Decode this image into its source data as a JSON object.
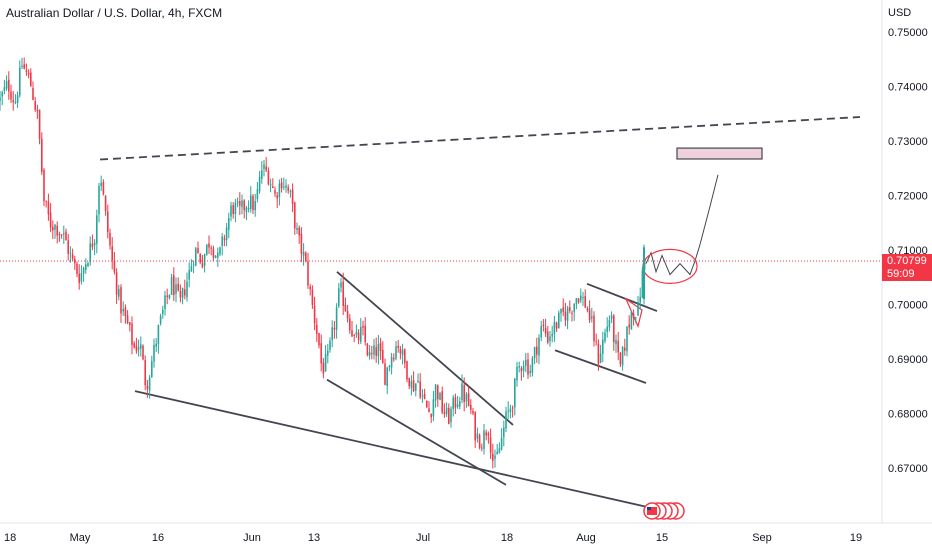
{
  "header": {
    "title": "Australian Dollar / U.S. Dollar, 4h, FXCM",
    "currency": "USD"
  },
  "price_tag": {
    "price": "0.70799",
    "countdown": "59:09"
  },
  "colors": {
    "up": "#26a69a",
    "down": "#f23645",
    "trendline": "#434651",
    "resistance_box": "#f0d0da"
  },
  "chart_data": {
    "type": "candlestick",
    "title": "Australian Dollar / U.S. Dollar, 4h, FXCM",
    "ylabel": "USD",
    "ylim": [
      0.6635,
      0.7535
    ],
    "y_ticks": [
      "0.75000",
      "0.74000",
      "0.73000",
      "0.72000",
      "0.71000",
      "0.70000",
      "0.69000",
      "0.68000",
      "0.67000"
    ],
    "x_ticks": [
      "18",
      "May",
      "16",
      "Jun",
      "13",
      "Jul",
      "18",
      "Aug",
      "15",
      "Sep",
      "19"
    ],
    "current_price": 0.70799,
    "grid": false,
    "series_path": [
      [
        0,
        0.7375
      ],
      [
        8,
        0.7405
      ],
      [
        15,
        0.737
      ],
      [
        22,
        0.744
      ],
      [
        30,
        0.741
      ],
      [
        38,
        0.734
      ],
      [
        44,
        0.719
      ],
      [
        50,
        0.715
      ],
      [
        58,
        0.714
      ],
      [
        65,
        0.712
      ],
      [
        72,
        0.708
      ],
      [
        80,
        0.705
      ],
      [
        88,
        0.709
      ],
      [
        95,
        0.713
      ],
      [
        100,
        0.725
      ],
      [
        105,
        0.717
      ],
      [
        112,
        0.708
      ],
      [
        120,
        0.7
      ],
      [
        128,
        0.696
      ],
      [
        134,
        0.692
      ],
      [
        140,
        0.693
      ],
      [
        146,
        0.685
      ],
      [
        150,
        0.688
      ],
      [
        158,
        0.695
      ],
      [
        165,
        0.7
      ],
      [
        172,
        0.704
      ],
      [
        180,
        0.7
      ],
      [
        188,
        0.705
      ],
      [
        195,
        0.71
      ],
      [
        202,
        0.708
      ],
      [
        210,
        0.712
      ],
      [
        218,
        0.708
      ],
      [
        225,
        0.713
      ],
      [
        232,
        0.718
      ],
      [
        240,
        0.717
      ],
      [
        248,
        0.719
      ],
      [
        255,
        0.718
      ],
      [
        262,
        0.725
      ],
      [
        268,
        0.724
      ],
      [
        275,
        0.72
      ],
      [
        282,
        0.723
      ],
      [
        290,
        0.72
      ],
      [
        298,
        0.712
      ],
      [
        305,
        0.708
      ],
      [
        312,
        0.7
      ],
      [
        318,
        0.694
      ],
      [
        322,
        0.688
      ],
      [
        328,
        0.69
      ],
      [
        334,
        0.696
      ],
      [
        340,
        0.703
      ],
      [
        348,
        0.698
      ],
      [
        355,
        0.693
      ],
      [
        362,
        0.695
      ],
      [
        370,
        0.69
      ],
      [
        378,
        0.692
      ],
      [
        385,
        0.687
      ],
      [
        392,
        0.691
      ],
      [
        398,
        0.693
      ],
      [
        405,
        0.689
      ],
      [
        412,
        0.685
      ],
      [
        418,
        0.686
      ],
      [
        424,
        0.682
      ],
      [
        430,
        0.68
      ],
      [
        436,
        0.685
      ],
      [
        442,
        0.681
      ],
      [
        448,
        0.679
      ],
      [
        455,
        0.682
      ],
      [
        462,
        0.684
      ],
      [
        470,
        0.681
      ],
      [
        476,
        0.676
      ],
      [
        482,
        0.675
      ],
      [
        488,
        0.678
      ],
      [
        494,
        0.67
      ],
      [
        500,
        0.674
      ],
      [
        506,
        0.679
      ],
      [
        512,
        0.682
      ],
      [
        518,
        0.688
      ],
      [
        524,
        0.69
      ],
      [
        530,
        0.688
      ],
      [
        536,
        0.692
      ],
      [
        542,
        0.696
      ],
      [
        548,
        0.694
      ],
      [
        555,
        0.696
      ],
      [
        562,
        0.698
      ],
      [
        570,
        0.699
      ],
      [
        578,
        0.702
      ],
      [
        586,
        0.7
      ],
      [
        592,
        0.696
      ],
      [
        598,
        0.69
      ],
      [
        604,
        0.694
      ],
      [
        610,
        0.698
      ],
      [
        616,
        0.692
      ],
      [
        620,
        0.688
      ],
      [
        626,
        0.694
      ],
      [
        632,
        0.699
      ],
      [
        638,
        0.699
      ],
      [
        642,
        0.705
      ],
      [
        645,
        0.708
      ]
    ],
    "annotations": [
      {
        "type": "dashed-line",
        "from": [
          100,
          0.7266
        ],
        "to": [
          860,
          0.7344
        ]
      },
      {
        "type": "line",
        "from": [
          135,
          0.6841
        ],
        "to": [
          646,
          0.6629
        ]
      },
      {
        "type": "line",
        "from": [
          337,
          0.706
        ],
        "to": [
          513,
          0.6779
        ]
      },
      {
        "type": "line",
        "from": [
          327,
          0.6862
        ],
        "to": [
          506,
          0.6669
        ]
      },
      {
        "type": "line",
        "from": [
          587,
          0.7038
        ],
        "to": [
          657,
          0.6988
        ]
      },
      {
        "type": "line",
        "from": [
          555,
          0.6916
        ],
        "to": [
          646,
          0.6856
        ]
      },
      {
        "type": "rect",
        "from": [
          677,
          0.7287
        ],
        "to": [
          762,
          0.7267
        ]
      },
      {
        "type": "curve",
        "points": [
          [
            646,
            0.7075
          ],
          [
            651,
            0.7095
          ],
          [
            656,
            0.706
          ],
          [
            662,
            0.709
          ],
          [
            670,
            0.7055
          ],
          [
            680,
            0.7075
          ],
          [
            690,
            0.7055
          ],
          [
            695,
            0.708
          ],
          [
            700,
            0.711
          ],
          [
            710,
            0.718
          ],
          [
            718,
            0.7238
          ]
        ]
      }
    ]
  }
}
